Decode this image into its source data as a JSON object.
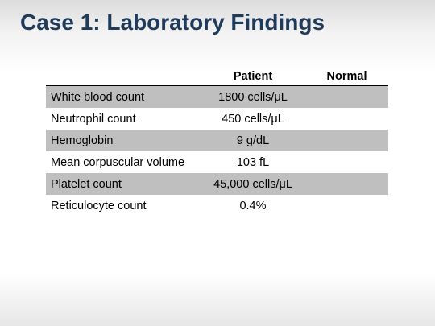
{
  "slide": {
    "title": "Case 1: Laboratory Findings"
  },
  "table": {
    "headers": {
      "test": "",
      "patient": "Patient",
      "normal": "Normal"
    },
    "rows": [
      {
        "test": "White blood count",
        "patient": "1800 cells/μL",
        "normal": ""
      },
      {
        "test": "Neutrophil count",
        "patient": "450 cells/μL",
        "normal": ""
      },
      {
        "test": "Hemoglobin",
        "patient": "9 g/dL",
        "normal": ""
      },
      {
        "test": "Mean corpuscular volume",
        "patient": "103 fL",
        "normal": ""
      },
      {
        "test": "Platelet count",
        "patient": "45,000 cells/μL",
        "normal": ""
      },
      {
        "test": "Reticulocyte count",
        "patient": "0.4%",
        "normal": ""
      }
    ]
  }
}
